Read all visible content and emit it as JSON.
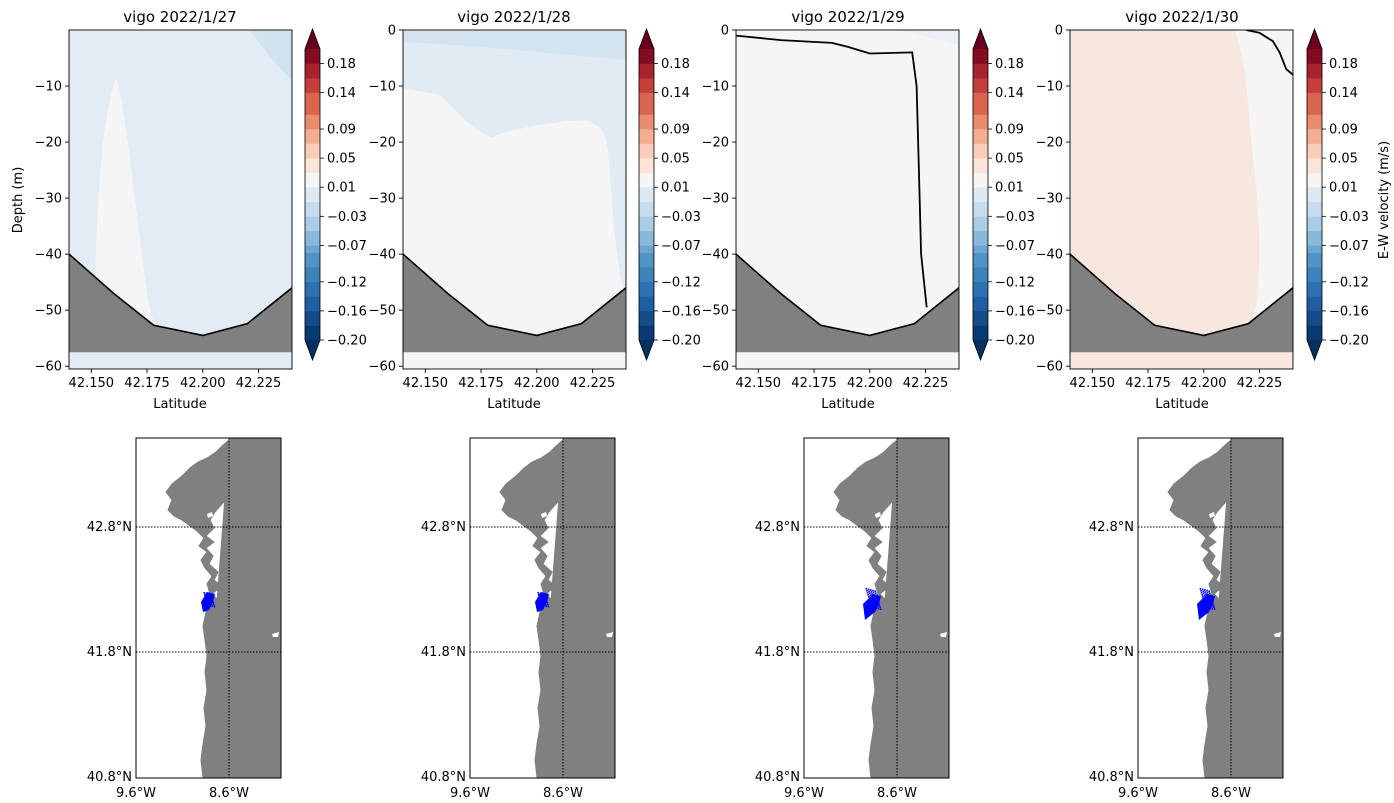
{
  "colormap": {
    "levels": [
      -0.2,
      -0.18,
      -0.16,
      -0.14,
      -0.12,
      -0.1,
      -0.08,
      -0.07,
      -0.05,
      -0.03,
      -0.01,
      0.01,
      0.03,
      0.05,
      0.07,
      0.09,
      0.11,
      0.14,
      0.16,
      0.18,
      0.2
    ],
    "colors": [
      "#073a70",
      "#134c88",
      "#1f5ea0",
      "#2c71b2",
      "#3c82bb",
      "#5093c4",
      "#6aa6cf",
      "#8ab8da",
      "#aacde5",
      "#c7dbee",
      "#dce9f2",
      "#f5f5f5",
      "#fbe4d8",
      "#f9cdb7",
      "#f4af92",
      "#e98b6d",
      "#d96550",
      "#c43e3b",
      "#a9222f",
      "#830c22"
    ],
    "over_color": "#67001f",
    "under_color": "#053061",
    "tick_values": [
      0.18,
      0.14,
      0.09,
      0.05,
      0.01,
      -0.03,
      -0.07,
      -0.12,
      -0.16,
      -0.2
    ],
    "tick_labels": [
      "0.18",
      "0.14",
      "0.09",
      "0.05",
      "0.01",
      "−0.03",
      "−0.07",
      "−0.12",
      "−0.16",
      "−0.20"
    ],
    "label": "E-W velocity (m/s)"
  },
  "map_axes": {
    "lat_ticks": [
      "42.8°N",
      "41.8°N",
      "40.8°N"
    ],
    "lon_ticks": [
      "9.6°W",
      "8.6°W"
    ]
  },
  "chart_data": [
    {
      "type": "heatmap",
      "title": "vigo 2022/1/27",
      "xlabel": "Latitude",
      "ylabel": "Depth (m)",
      "xlim": [
        42.14,
        42.24
      ],
      "ylim": [
        -60.5,
        0
      ],
      "x_ticks": [
        "42.150",
        "42.175",
        "42.200",
        "42.225"
      ],
      "y_ticks": [
        "−10",
        "−20",
        "−30",
        "−40",
        "−50",
        "−60"
      ],
      "field": {
        "base": [
          -0.03,
          -0.01
        ],
        "core": [
          -0.01,
          0.01
        ]
      },
      "bathymetry": {
        "lat": [
          42.14,
          42.16,
          42.178,
          42.2,
          42.22,
          42.24
        ],
        "depth": [
          -40,
          -47,
          -52.7,
          -54.5,
          -52.4,
          -46
        ]
      },
      "zero_contour": null
    },
    {
      "type": "heatmap",
      "title": "vigo 2022/1/28",
      "xlabel": "Latitude",
      "ylabel": "",
      "xlim": [
        42.14,
        42.24
      ],
      "ylim": [
        -60.5,
        0
      ],
      "x_ticks": [
        "42.150",
        "42.175",
        "42.200",
        "42.225"
      ],
      "y_ticks": [
        "0",
        "−10",
        "−20",
        "−30",
        "−40",
        "−50",
        "−60"
      ],
      "field": {
        "base": [
          -0.01,
          0.01
        ],
        "top_layer": [
          -0.03,
          -0.01
        ]
      },
      "bathymetry": {
        "lat": [
          42.14,
          42.16,
          42.178,
          42.2,
          42.22,
          42.24
        ],
        "depth": [
          -40,
          -47,
          -52.7,
          -54.5,
          -52.4,
          -46
        ]
      },
      "zero_contour": null
    },
    {
      "type": "heatmap",
      "title": "vigo 2022/1/29",
      "xlabel": "Latitude",
      "ylabel": "",
      "xlim": [
        42.14,
        42.24
      ],
      "ylim": [
        -60.5,
        0
      ],
      "x_ticks": [
        "42.150",
        "42.175",
        "42.200",
        "42.225"
      ],
      "y_ticks": [
        "0",
        "−10",
        "−20",
        "−30",
        "−40",
        "−50",
        "−60"
      ],
      "field": {
        "base": [
          -0.01,
          0.01
        ]
      },
      "bathymetry": {
        "lat": [
          42.14,
          42.16,
          42.178,
          42.2,
          42.22,
          42.24
        ],
        "depth": [
          -40,
          -47,
          -52.7,
          -54.5,
          -52.4,
          -46
        ]
      },
      "zero_contour": {
        "lat": [
          42.14,
          42.16,
          42.183,
          42.19,
          42.2,
          42.219,
          42.221,
          42.222,
          42.223,
          42.2255
        ],
        "depth": [
          -1,
          -1.8,
          -2.3,
          -3,
          -4.2,
          -4,
          -10,
          -25,
          -40,
          -49.5
        ]
      }
    },
    {
      "type": "heatmap",
      "title": "vigo 2022/1/30",
      "xlabel": "Latitude",
      "ylabel": "",
      "xlim": [
        42.14,
        42.24
      ],
      "ylim": [
        -60.5,
        0
      ],
      "x_ticks": [
        "42.150",
        "42.175",
        "42.200",
        "42.225"
      ],
      "y_ticks": [
        "0",
        "−10",
        "−20",
        "−30",
        "−40",
        "−50",
        "−60"
      ],
      "field": {
        "base": [
          0.01,
          0.03
        ],
        "right_edge": [
          -0.01,
          0.01
        ]
      },
      "bathymetry": {
        "lat": [
          42.14,
          42.16,
          42.178,
          42.2,
          42.22,
          42.24
        ],
        "depth": [
          -40,
          -47,
          -52.7,
          -54.5,
          -52.4,
          -46
        ]
      },
      "zero_contour": {
        "lat": [
          42.219,
          42.225,
          42.231,
          42.234,
          42.237,
          42.24
        ],
        "depth": [
          0,
          -0.5,
          -2,
          -4,
          -7,
          -8
        ]
      }
    }
  ]
}
